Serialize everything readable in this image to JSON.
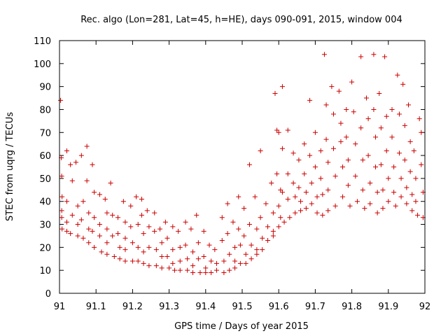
{
  "chart_data": {
    "type": "scatter",
    "title": "Rec. algo (Lon=281, Lat=45, h=HE), days 090-091, 2015, window 004",
    "xlabel": "GPS time / Days of year 2015",
    "ylabel": "STEC from uqrg / TECUs",
    "xlim": [
      91,
      92
    ],
    "ylim": [
      0,
      110
    ],
    "xticks": [
      "91",
      "91.1",
      "91.2",
      "91.3",
      "91.4",
      "91.5",
      "91.6",
      "91.7",
      "91.8",
      "91.9",
      "92"
    ],
    "yticks": [
      "0",
      "10",
      "20",
      "30",
      "40",
      "50",
      "60",
      "70",
      "80",
      "90",
      "100",
      "110"
    ],
    "grid": false,
    "marker": "plus",
    "color": "#cc0000",
    "series": [
      {
        "points": [
          [
            91.003,
            84
          ],
          [
            91.005,
            59
          ],
          [
            91.006,
            51
          ],
          [
            91.007,
            42
          ],
          [
            91.006,
            36
          ],
          [
            91.006,
            33
          ],
          [
            91.007,
            28
          ],
          [
            91.02,
            62
          ],
          [
            91.02,
            40
          ],
          [
            91.02,
            31
          ],
          [
            91.02,
            27
          ],
          [
            91.03,
            56
          ],
          [
            91.035,
            49
          ],
          [
            91.035,
            34
          ],
          [
            91.03,
            26
          ],
          [
            91.045,
            57
          ],
          [
            91.05,
            38
          ],
          [
            91.05,
            30
          ],
          [
            91.05,
            25
          ],
          [
            91.06,
            60
          ],
          [
            91.065,
            40
          ],
          [
            91.06,
            32
          ],
          [
            91.065,
            24
          ],
          [
            91.075,
            64
          ],
          [
            91.075,
            49
          ],
          [
            91.08,
            35
          ],
          [
            91.08,
            28
          ],
          [
            91.08,
            22
          ],
          [
            91.09,
            56
          ],
          [
            91.095,
            44
          ],
          [
            91.095,
            33
          ],
          [
            91.09,
            27
          ],
          [
            91.095,
            20
          ],
          [
            91.11,
            43
          ],
          [
            91.11,
            30
          ],
          [
            91.11,
            25
          ],
          [
            91.115,
            18
          ],
          [
            91.125,
            41
          ],
          [
            91.13,
            35
          ],
          [
            91.13,
            28
          ],
          [
            91.13,
            22
          ],
          [
            91.13,
            17
          ],
          [
            91.14,
            48
          ],
          [
            91.145,
            34
          ],
          [
            91.145,
            25
          ],
          [
            91.15,
            16
          ],
          [
            91.16,
            33
          ],
          [
            91.16,
            26
          ],
          [
            91.165,
            20
          ],
          [
            91.165,
            15
          ],
          [
            91.175,
            40
          ],
          [
            91.18,
            31
          ],
          [
            91.18,
            24
          ],
          [
            91.18,
            19
          ],
          [
            91.18,
            14
          ],
          [
            91.195,
            38
          ],
          [
            91.195,
            29
          ],
          [
            91.2,
            22
          ],
          [
            91.2,
            14
          ],
          [
            91.21,
            42
          ],
          [
            91.215,
            30
          ],
          [
            91.215,
            20
          ],
          [
            91.215,
            14
          ],
          [
            91.225,
            41
          ],
          [
            91.225,
            34
          ],
          [
            91.23,
            26
          ],
          [
            91.23,
            18
          ],
          [
            91.23,
            13
          ],
          [
            91.24,
            36
          ],
          [
            91.245,
            29
          ],
          [
            91.245,
            20
          ],
          [
            91.245,
            12
          ],
          [
            91.26,
            35
          ],
          [
            91.26,
            27
          ],
          [
            91.265,
            19
          ],
          [
            91.265,
            12
          ],
          [
            91.275,
            28
          ],
          [
            91.28,
            22
          ],
          [
            91.28,
            16
          ],
          [
            91.28,
            11
          ],
          [
            91.29,
            31
          ],
          [
            91.295,
            24
          ],
          [
            91.295,
            16
          ],
          [
            91.3,
            11
          ],
          [
            91.31,
            29
          ],
          [
            91.31,
            19
          ],
          [
            91.31,
            13
          ],
          [
            91.315,
            10
          ],
          [
            91.325,
            27
          ],
          [
            91.33,
            20
          ],
          [
            91.33,
            14
          ],
          [
            91.33,
            10
          ],
          [
            91.345,
            31
          ],
          [
            91.345,
            21
          ],
          [
            91.35,
            15
          ],
          [
            91.35,
            10
          ],
          [
            91.36,
            28
          ],
          [
            91.365,
            18
          ],
          [
            91.365,
            12
          ],
          [
            91.365,
            9
          ],
          [
            91.375,
            34
          ],
          [
            91.38,
            22
          ],
          [
            91.38,
            15
          ],
          [
            91.385,
            9
          ],
          [
            91.395,
            27
          ],
          [
            91.395,
            16
          ],
          [
            91.4,
            11
          ],
          [
            91.4,
            9
          ],
          [
            91.41,
            21
          ],
          [
            91.415,
            14
          ],
          [
            91.415,
            9
          ],
          [
            91.425,
            19
          ],
          [
            91.43,
            13
          ],
          [
            91.43,
            10
          ],
          [
            91.445,
            33
          ],
          [
            91.445,
            23
          ],
          [
            91.45,
            14
          ],
          [
            91.45,
            9
          ],
          [
            91.46,
            39
          ],
          [
            91.46,
            26
          ],
          [
            91.465,
            17
          ],
          [
            91.465,
            10
          ],
          [
            91.475,
            31
          ],
          [
            91.48,
            20
          ],
          [
            91.48,
            14
          ],
          [
            91.48,
            11
          ],
          [
            91.49,
            42
          ],
          [
            91.49,
            28
          ],
          [
            91.495,
            21
          ],
          [
            91.495,
            13
          ],
          [
            91.505,
            37
          ],
          [
            91.505,
            25
          ],
          [
            91.51,
            17
          ],
          [
            91.51,
            13
          ],
          [
            91.52,
            56
          ],
          [
            91.52,
            30
          ],
          [
            91.525,
            21
          ],
          [
            91.525,
            15
          ],
          [
            91.535,
            42
          ],
          [
            91.54,
            28
          ],
          [
            91.54,
            19
          ],
          [
            91.54,
            17
          ],
          [
            91.55,
            62
          ],
          [
            91.55,
            33
          ],
          [
            91.555,
            24
          ],
          [
            91.555,
            19
          ],
          [
            91.565,
            39
          ],
          [
            91.57,
            29
          ],
          [
            91.57,
            23
          ],
          [
            91.58,
            48
          ],
          [
            91.585,
            35
          ],
          [
            91.585,
            27
          ],
          [
            91.585,
            25
          ],
          [
            91.595,
            71
          ],
          [
            91.595,
            52
          ],
          [
            91.6,
            38
          ],
          [
            91.6,
            29
          ],
          [
            91.61,
            90
          ],
          [
            91.61,
            63
          ],
          [
            91.61,
            44
          ],
          [
            91.615,
            31
          ],
          [
            91.59,
            87
          ],
          [
            91.6,
            70
          ],
          [
            91.605,
            45
          ],
          [
            91.605,
            33
          ],
          [
            91.625,
            71
          ],
          [
            91.625,
            52
          ],
          [
            91.625,
            41
          ],
          [
            91.63,
            33
          ],
          [
            91.64,
            61
          ],
          [
            91.64,
            48
          ],
          [
            91.645,
            42
          ],
          [
            91.645,
            35
          ],
          [
            91.655,
            58
          ],
          [
            91.655,
            46
          ],
          [
            91.66,
            40
          ],
          [
            91.66,
            36
          ],
          [
            91.67,
            65
          ],
          [
            91.67,
            52
          ],
          [
            91.675,
            44
          ],
          [
            91.675,
            37
          ],
          [
            91.685,
            84
          ],
          [
            91.685,
            60
          ],
          [
            91.69,
            48
          ],
          [
            91.69,
            39
          ],
          [
            91.7,
            70
          ],
          [
            91.7,
            55
          ],
          [
            91.705,
            42
          ],
          [
            91.705,
            35
          ],
          [
            91.715,
            62
          ],
          [
            91.715,
            50
          ],
          [
            91.72,
            43
          ],
          [
            91.72,
            34
          ],
          [
            91.725,
            104
          ],
          [
            91.73,
            82
          ],
          [
            91.73,
            67
          ],
          [
            91.735,
            57
          ],
          [
            91.735,
            45
          ],
          [
            91.735,
            36
          ],
          [
            91.745,
            90
          ],
          [
            91.75,
            78
          ],
          [
            91.75,
            63
          ],
          [
            91.755,
            51
          ],
          [
            91.755,
            38
          ],
          [
            91.765,
            88
          ],
          [
            91.77,
            74
          ],
          [
            91.77,
            66
          ],
          [
            91.775,
            55
          ],
          [
            91.775,
            42
          ],
          [
            91.785,
            80
          ],
          [
            91.785,
            68
          ],
          [
            91.79,
            58
          ],
          [
            91.79,
            47
          ],
          [
            91.795,
            38
          ],
          [
            91.8,
            92
          ],
          [
            91.805,
            79
          ],
          [
            91.81,
            65
          ],
          [
            91.81,
            51
          ],
          [
            91.815,
            40
          ],
          [
            91.825,
            103
          ],
          [
            91.825,
            72
          ],
          [
            91.83,
            58
          ],
          [
            91.83,
            45
          ],
          [
            91.835,
            37
          ],
          [
            91.84,
            85
          ],
          [
            91.845,
            76
          ],
          [
            91.845,
            60
          ],
          [
            91.85,
            48
          ],
          [
            91.85,
            39
          ],
          [
            91.86,
            104
          ],
          [
            91.86,
            80
          ],
          [
            91.865,
            68
          ],
          [
            91.865,
            55
          ],
          [
            91.87,
            44
          ],
          [
            91.87,
            35
          ],
          [
            91.875,
            87
          ],
          [
            91.88,
            72
          ],
          [
            91.88,
            56
          ],
          [
            91.885,
            45
          ],
          [
            91.885,
            37
          ],
          [
            91.89,
            103
          ],
          [
            91.895,
            77
          ],
          [
            91.895,
            62
          ],
          [
            91.9,
            50
          ],
          [
            91.9,
            40
          ],
          [
            91.91,
            80
          ],
          [
            91.91,
            68
          ],
          [
            91.915,
            55
          ],
          [
            91.915,
            44
          ],
          [
            91.92,
            38
          ],
          [
            91.925,
            95
          ],
          [
            91.93,
            78
          ],
          [
            91.93,
            61
          ],
          [
            91.935,
            50
          ],
          [
            91.935,
            42
          ],
          [
            91.94,
            91
          ],
          [
            91.945,
            73
          ],
          [
            91.945,
            58
          ],
          [
            91.95,
            46
          ],
          [
            91.95,
            39
          ],
          [
            91.955,
            82
          ],
          [
            91.96,
            66
          ],
          [
            91.96,
            53
          ],
          [
            91.965,
            43
          ],
          [
            91.965,
            36
          ],
          [
            91.97,
            62
          ],
          [
            91.975,
            50
          ],
          [
            91.975,
            40
          ],
          [
            91.98,
            34
          ],
          [
            91.985,
            76
          ],
          [
            91.99,
            70
          ],
          [
            91.99,
            56
          ],
          [
            91.995,
            44
          ],
          [
            91.995,
            33
          ]
        ]
      }
    ]
  }
}
